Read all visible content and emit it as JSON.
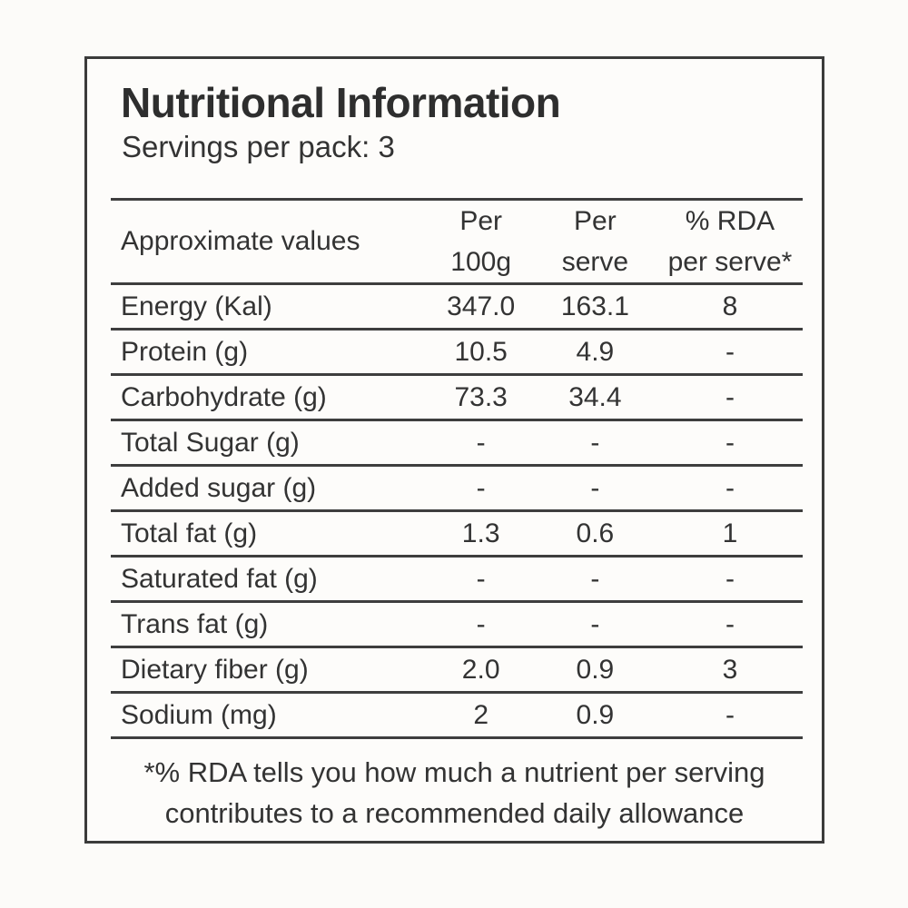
{
  "label": {
    "title": "Nutritional Information",
    "servings": "Servings per pack: 3",
    "table": {
      "headers": {
        "label": "Approximate values",
        "per100g": [
          "Per",
          "100g"
        ],
        "per_serve": [
          "Per",
          "serve"
        ],
        "rda": [
          "% RDA",
          "per serve*"
        ]
      },
      "rows": [
        {
          "name": "Energy (Kal)",
          "per100g": "347.0",
          "per_serve": "163.1",
          "rda": "8"
        },
        {
          "name": "Protein (g)",
          "per100g": "10.5",
          "per_serve": "4.9",
          "rda": "-"
        },
        {
          "name": "Carbohydrate (g)",
          "per100g": "73.3",
          "per_serve": "34.4",
          "rda": "-"
        },
        {
          "name": "Total Sugar (g)",
          "per100g": "-",
          "per_serve": "-",
          "rda": "-"
        },
        {
          "name": "Added sugar (g)",
          "per100g": "-",
          "per_serve": "-",
          "rda": "-"
        },
        {
          "name": "Total fat (g)",
          "per100g": "1.3",
          "per_serve": "0.6",
          "rda": "1"
        },
        {
          "name": "Saturated fat (g)",
          "per100g": "-",
          "per_serve": "-",
          "rda": "-"
        },
        {
          "name": "Trans fat (g)",
          "per100g": "-",
          "per_serve": "-",
          "rda": "-"
        },
        {
          "name": "Dietary fiber (g)",
          "per100g": "2.0",
          "per_serve": "0.9",
          "rda": "3"
        },
        {
          "name": "Sodium (mg)",
          "per100g": "2",
          "per_serve": "0.9",
          "rda": "-"
        }
      ]
    },
    "footnote": [
      "*% RDA tells you how much a nutrient per serving",
      "contributes to a recommended daily allowance"
    ],
    "colors": {
      "text": "#333333",
      "border": "#3b3b3b",
      "background": "#fdfcfa"
    }
  }
}
